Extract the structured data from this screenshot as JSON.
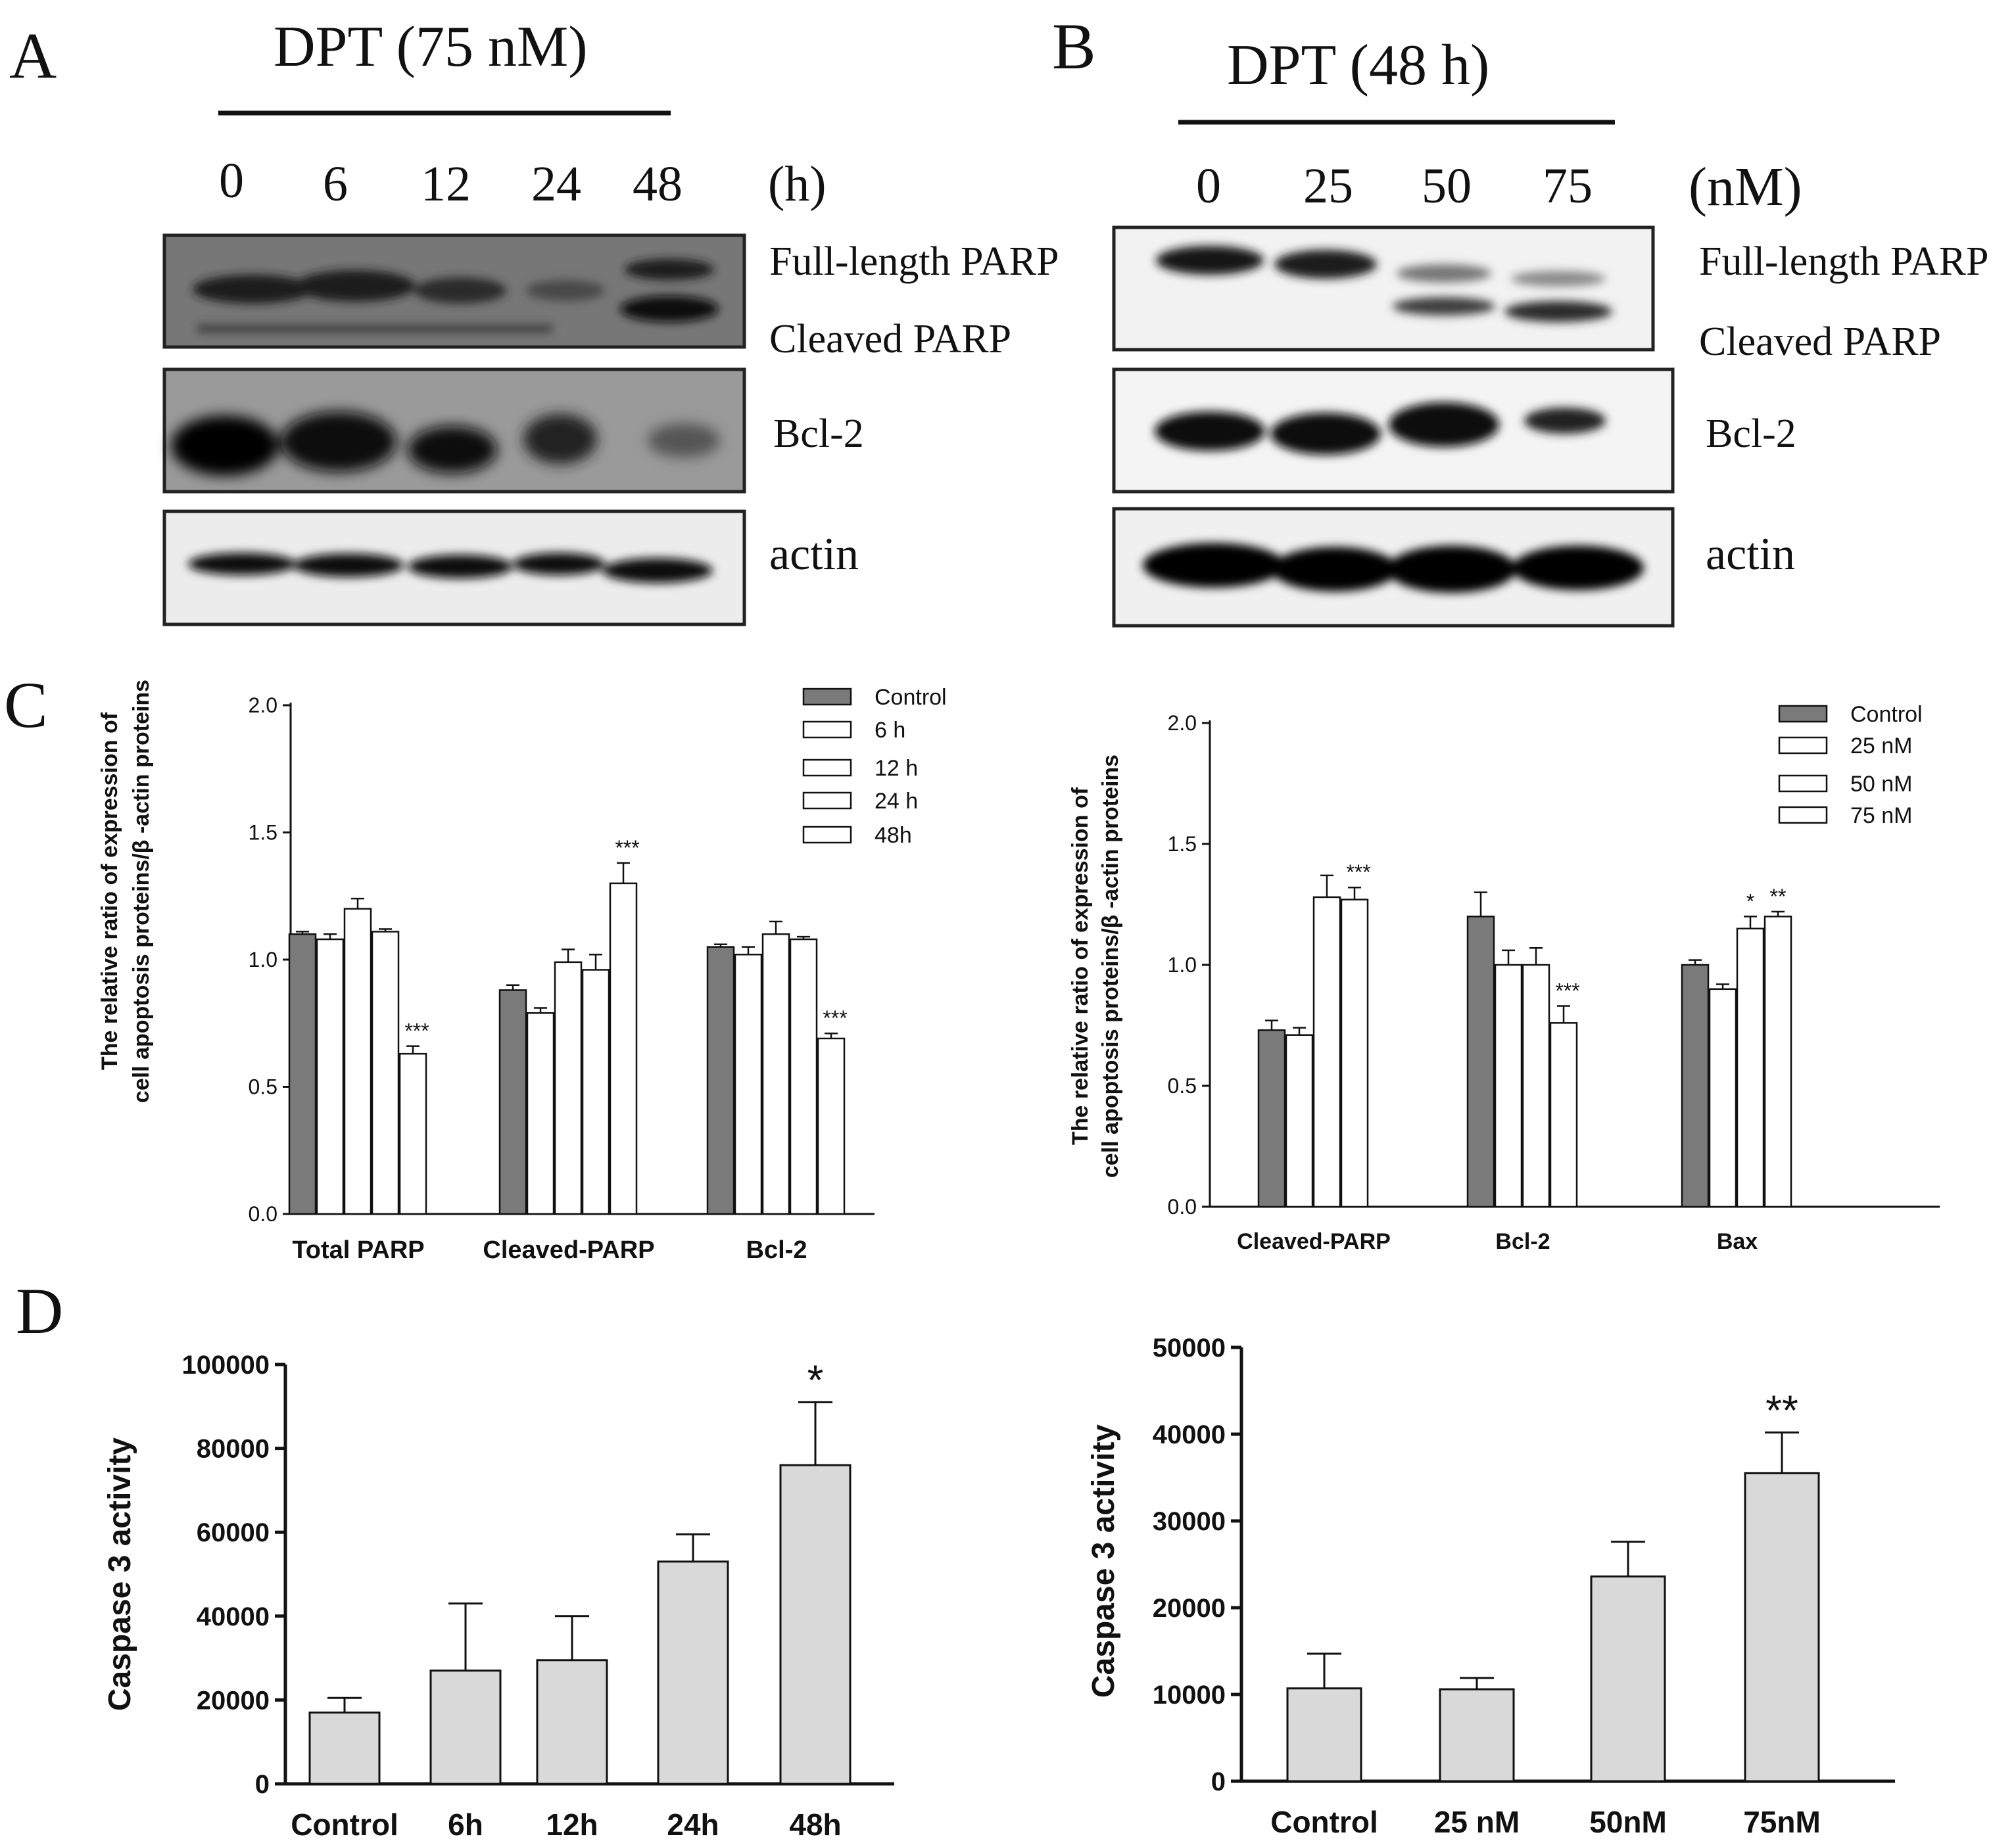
{
  "panels": {
    "A": {
      "letter": "A",
      "treatment": "DPT (75 nM)",
      "unit": "(h)",
      "lanes": [
        "0",
        "6",
        "12",
        "24",
        "48"
      ],
      "labels": {
        "full_parp": "Full-length PARP",
        "cleaved_parp": "Cleaved PARP",
        "bcl2": "Bcl-2",
        "actin": "actin"
      }
    },
    "B": {
      "letter": "B",
      "treatment": "DPT (48 h)",
      "unit": "(nM)",
      "lanes": [
        "0",
        "25",
        "50",
        "75"
      ],
      "labels": {
        "full_parp": "Full-length PARP",
        "cleaved_parp": "Cleaved PARP",
        "bcl2": "Bcl-2",
        "actin": "actin"
      }
    },
    "C": {
      "letter": "C"
    },
    "D": {
      "letter": "D"
    }
  },
  "chart_data": [
    {
      "id": "C-left",
      "type": "bar",
      "ylabel": "The relative ratio of expression of cell apoptosis  proteins/β -actin proteins",
      "ylim": [
        0,
        2.0
      ],
      "yticks": [
        "0.0",
        "0.5",
        "1.0",
        "1.5",
        "2.0"
      ],
      "categories": [
        "Total PARP",
        "Cleaved-PARP",
        "Bcl-2"
      ],
      "legend_position": "top-right",
      "series": [
        {
          "name": "Control",
          "color": "#7a7a7a",
          "values": [
            1.1,
            0.88,
            1.05
          ],
          "errors": [
            0.01,
            0.02,
            0.01
          ],
          "sig": [
            "",
            "",
            ""
          ]
        },
        {
          "name": "6 h",
          "color": "#ffffff",
          "values": [
            1.08,
            0.79,
            1.02
          ],
          "errors": [
            0.02,
            0.02,
            0.03
          ],
          "sig": [
            "",
            "",
            ""
          ]
        },
        {
          "name": "12 h",
          "color": "#ffffff",
          "values": [
            1.2,
            0.99,
            1.1
          ],
          "errors": [
            0.04,
            0.05,
            0.05
          ],
          "sig": [
            "",
            "",
            ""
          ]
        },
        {
          "name": "24 h",
          "color": "#ffffff",
          "values": [
            1.11,
            0.96,
            1.08
          ],
          "errors": [
            0.01,
            0.06,
            0.01
          ],
          "sig": [
            "",
            "",
            ""
          ]
        },
        {
          "name": "48h",
          "color": "#ffffff",
          "values": [
            0.63,
            1.3,
            0.69
          ],
          "errors": [
            0.03,
            0.08,
            0.02
          ],
          "sig": [
            "***",
            "***",
            "***"
          ]
        }
      ]
    },
    {
      "id": "C-right",
      "type": "bar",
      "ylabel": "The relative ratio of expression of cell apoptosis  proteins/β -actin proteins",
      "ylim": [
        0,
        2.0
      ],
      "yticks": [
        "0.0",
        "0.5",
        "1.0",
        "1.5",
        "2.0"
      ],
      "categories": [
        "Cleaved-PARP",
        "Bcl-2",
        "Bax"
      ],
      "legend_position": "top-right",
      "series": [
        {
          "name": "Control",
          "color": "#7a7a7a",
          "values": [
            0.73,
            1.2,
            1.0
          ],
          "errors": [
            0.04,
            0.1,
            0.02
          ],
          "sig": [
            "",
            "",
            ""
          ]
        },
        {
          "name": "25 nM",
          "color": "#ffffff",
          "values": [
            0.71,
            1.0,
            0.9
          ],
          "errors": [
            0.03,
            0.06,
            0.02
          ],
          "sig": [
            "",
            "",
            ""
          ]
        },
        {
          "name": "50 nM",
          "color": "#ffffff",
          "values": [
            1.28,
            1.0,
            1.15
          ],
          "errors": [
            0.09,
            0.07,
            0.05
          ],
          "sig": [
            "",
            "",
            "*"
          ]
        },
        {
          "name": "75 nM",
          "color": "#ffffff",
          "values": [
            1.27,
            0.76,
            1.2
          ],
          "errors": [
            0.05,
            0.07,
            0.02
          ],
          "sig": [
            "***",
            "***",
            "**"
          ]
        }
      ]
    },
    {
      "id": "D-left",
      "type": "bar",
      "ylabel": "Caspase 3 activity",
      "ylim": [
        0,
        100000
      ],
      "yticks": [
        "0",
        "20000",
        "40000",
        "60000",
        "80000",
        "100000"
      ],
      "categories": [
        "Control",
        "6h",
        "12h",
        "24h",
        "48h"
      ],
      "values": [
        17000,
        27000,
        29500,
        53000,
        76000
      ],
      "errors": [
        3500,
        16000,
        10500,
        6500,
        15000
      ],
      "sig": [
        "",
        "",
        "",
        "",
        "*"
      ],
      "color": "#d9d9d9"
    },
    {
      "id": "D-right",
      "type": "bar",
      "ylabel": "Caspase 3 activity",
      "ylim": [
        0,
        50000
      ],
      "yticks": [
        "0",
        "10000",
        "20000",
        "30000",
        "40000",
        "50000"
      ],
      "categories": [
        "Control",
        "25 nM",
        "50nM",
        "75nM"
      ],
      "values": [
        10700,
        10600,
        23600,
        35500
      ],
      "errors": [
        4000,
        1300,
        4000,
        4700
      ],
      "sig": [
        "",
        "",
        "",
        "**"
      ],
      "color": "#d9d9d9"
    }
  ]
}
